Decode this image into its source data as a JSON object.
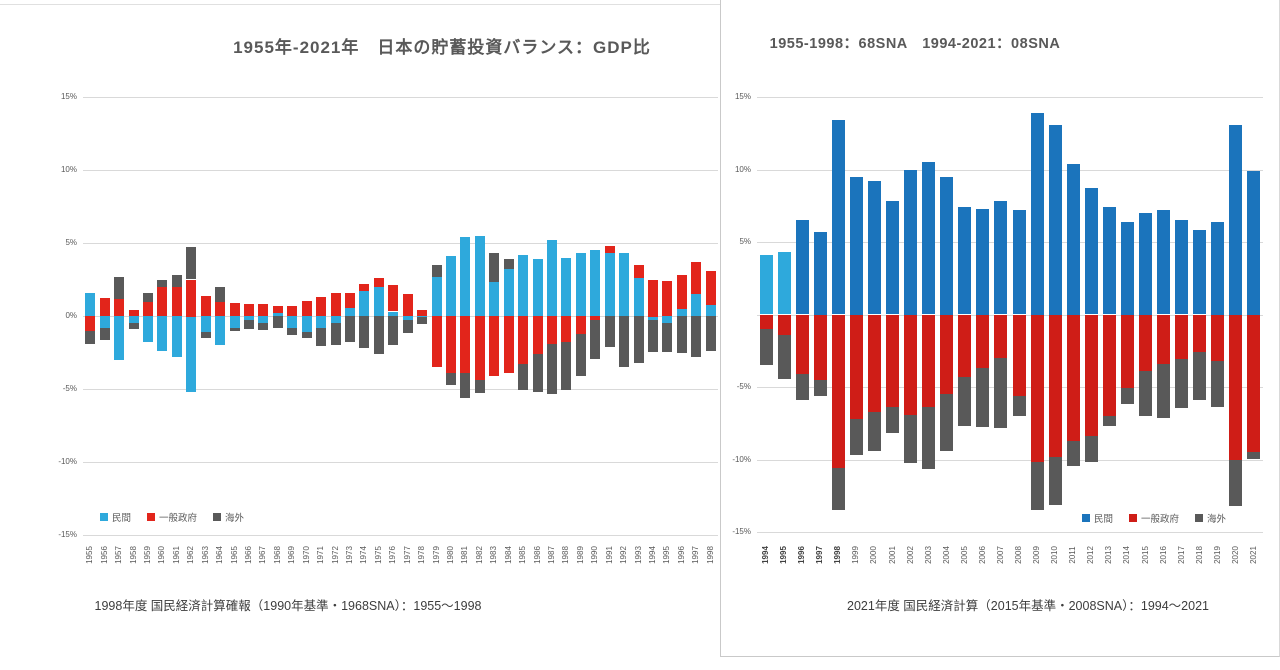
{
  "page": {
    "background": "#ffffff"
  },
  "chart_data": [
    {
      "type": "bar",
      "stacked": true,
      "title": "1955年-2021年　日本の貯蓄投資バランス：GDP比",
      "caption": "1998年度 国民経済計算確報（1990年基準・1968SNA）：1955～1998",
      "ylabel": "",
      "xlabel": "",
      "ylim": [
        -15,
        15
      ],
      "grid_values": [
        15,
        10,
        5,
        0,
        -5,
        -10,
        -15
      ],
      "y_ticks": [
        {
          "label": "15%",
          "value": 15
        },
        {
          "label": "10%",
          "value": 10
        },
        {
          "label": "5%",
          "value": 5
        },
        {
          "label": "0%",
          "value": 0
        },
        {
          "label": "-5%",
          "value": -5
        },
        {
          "label": "-10%",
          "value": -10
        },
        {
          "label": "-15%",
          "value": -15
        }
      ],
      "legend": [
        {
          "name": "民間",
          "color": "#2ea9dc"
        },
        {
          "name": "一般政府",
          "color": "#e2251b"
        },
        {
          "name": "海外",
          "color": "#595959"
        }
      ],
      "colors": {
        "private": "#2ea9dc",
        "government": "#e2251b",
        "overseas": "#595959"
      },
      "categories": [
        1955,
        1956,
        1957,
        1958,
        1959,
        1960,
        1961,
        1962,
        1963,
        1964,
        1965,
        1966,
        1967,
        1968,
        1969,
        1970,
        1971,
        1972,
        1973,
        1974,
        1975,
        1976,
        1977,
        1978,
        1979,
        1980,
        1981,
        1982,
        1983,
        1984,
        1985,
        1986,
        1987,
        1988,
        1989,
        1990,
        1991,
        1992,
        1993,
        1994,
        1995,
        1996,
        1997,
        1998
      ],
      "series": [
        {
          "name": "民間",
          "values": [
            1.6,
            -0.8,
            -3.0,
            -0.5,
            -1.8,
            -2.4,
            -2.8,
            -5.2,
            -1.1,
            -2.0,
            -0.8,
            -0.3,
            -0.5,
            0.2,
            -0.8,
            -1.1,
            -0.8,
            -0.5,
            0.6,
            1.7,
            2.0,
            0.3,
            -0.3,
            -0.1,
            2.7,
            4.1,
            5.4,
            5.5,
            2.3,
            3.2,
            4.2,
            3.9,
            5.2,
            4.0,
            4.3,
            4.5,
            4.3,
            4.3,
            2.6,
            -0.3,
            -0.5,
            0.5,
            1.5,
            0.8
          ]
        },
        {
          "name": "一般政府",
          "values": [
            -1.0,
            1.2,
            1.2,
            0.4,
            1.0,
            2.0,
            2.0,
            2.5,
            1.4,
            1.0,
            0.9,
            0.8,
            0.8,
            0.5,
            0.7,
            1.0,
            1.3,
            1.6,
            1.0,
            0.5,
            0.6,
            1.8,
            1.5,
            0.4,
            -3.5,
            -3.9,
            -3.9,
            -4.4,
            -4.1,
            -3.9,
            -3.3,
            -2.6,
            -1.9,
            -1.8,
            -1.2,
            -0.3,
            0.5,
            0.0,
            0.9,
            2.5,
            2.4,
            2.3,
            2.2,
            2.3
          ]
        },
        {
          "name": "海外",
          "values": [
            -0.9,
            -0.8,
            1.5,
            -0.4,
            0.6,
            0.5,
            0.8,
            2.2,
            -0.4,
            1.0,
            -0.2,
            -0.6,
            -0.5,
            -0.8,
            -0.5,
            -0.4,
            -1.2,
            -1.5,
            -1.8,
            -2.2,
            -2.6,
            -2.0,
            -0.9,
            -0.5,
            0.8,
            -0.8,
            -1.7,
            -0.9,
            2.0,
            0.7,
            -1.8,
            -2.6,
            -3.4,
            -3.3,
            -2.9,
            -2.7,
            -2.1,
            -3.5,
            -3.2,
            -2.2,
            -2.0,
            -2.5,
            -2.8,
            -2.4
          ]
        }
      ],
      "bold_years": [],
      "light_private_years": []
    },
    {
      "type": "bar",
      "stacked": true,
      "title": "1955-1998：68SNA　1994-2021：08SNA",
      "caption": "2021年度 国民経済計算（2015年基準・2008SNA）：1994～2021",
      "ylabel": "",
      "xlabel": "",
      "ylim": [
        -15,
        15
      ],
      "grid_values": [
        15,
        10,
        5,
        0,
        -5,
        -10,
        -15
      ],
      "y_ticks": [
        {
          "label": "15%",
          "value": 15
        },
        {
          "label": "10%",
          "value": 10
        },
        {
          "label": "5%",
          "value": 5
        },
        {
          "label": "-5%",
          "value": -5
        },
        {
          "label": "-10%",
          "value": -10
        },
        {
          "label": "-15%",
          "value": -15
        }
      ],
      "legend": [
        {
          "name": "民間",
          "color": "#1b74bc"
        },
        {
          "name": "一般政府",
          "color": "#cf1d17"
        },
        {
          "name": "海外",
          "color": "#595959"
        }
      ],
      "colors": {
        "private": "#1b74bc",
        "private_light": "#2ea9dc",
        "government": "#cf1d17",
        "overseas": "#595959"
      },
      "categories": [
        1994,
        1995,
        1996,
        1997,
        1998,
        1999,
        2000,
        2001,
        2002,
        2003,
        2004,
        2005,
        2006,
        2007,
        2008,
        2009,
        2010,
        2011,
        2012,
        2013,
        2014,
        2015,
        2016,
        2017,
        2018,
        2019,
        2020,
        2021
      ],
      "series": [
        {
          "name": "民間",
          "values": [
            4.1,
            4.3,
            6.5,
            5.7,
            13.4,
            9.5,
            9.2,
            7.8,
            10.0,
            10.5,
            9.5,
            7.4,
            7.3,
            7.8,
            7.2,
            13.9,
            13.1,
            10.4,
            8.7,
            7.4,
            6.4,
            7.0,
            7.2,
            6.5,
            5.8,
            6.4,
            13.1,
            9.9
          ]
        },
        {
          "name": "一般政府",
          "values": [
            -1.0,
            -1.4,
            -4.1,
            -4.5,
            -10.6,
            -7.2,
            -6.7,
            -6.4,
            -6.9,
            -6.4,
            -5.5,
            -4.3,
            -3.7,
            -3.0,
            -5.6,
            -10.2,
            -9.8,
            -8.7,
            -8.4,
            -7.0,
            -5.1,
            -3.9,
            -3.4,
            -3.1,
            -2.6,
            -3.2,
            -10.0,
            -9.5
          ]
        },
        {
          "name": "海外",
          "values": [
            -2.5,
            -3.0,
            -1.8,
            -1.1,
            -2.9,
            -2.5,
            -2.7,
            -1.8,
            -3.3,
            -4.3,
            -3.9,
            -3.4,
            -4.1,
            -4.8,
            -1.4,
            -3.3,
            -3.3,
            -1.7,
            -1.8,
            -0.7,
            -1.1,
            -3.1,
            -3.7,
            -3.4,
            -3.3,
            -3.2,
            -3.2,
            -0.5
          ]
        }
      ],
      "bold_years": [
        1994,
        1995,
        1996,
        1997,
        1998
      ],
      "light_private_years": [
        1994,
        1995
      ]
    }
  ]
}
